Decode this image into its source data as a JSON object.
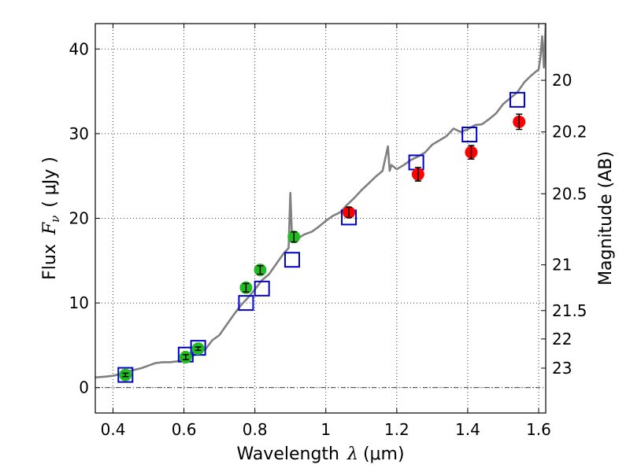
{
  "chart_data": {
    "type": "scatter",
    "xlabel_prefix": "Wavelength",
    "xlabel_symbol": "λ",
    "xlabel_unit": "(μm)",
    "ylabel_prefix": "Flux",
    "ylabel_symbol": "F",
    "ylabel_sub": "ν",
    "ylabel_unit": "( μJy )",
    "y2label": "Magnitude (AB)",
    "xlim": [
      0.35,
      1.62
    ],
    "ylim": [
      -3,
      43
    ],
    "grid": true,
    "x_ticks": [
      0.4,
      0.6,
      0.8,
      1.0,
      1.2,
      1.4,
      1.6
    ],
    "x_tick_labels": [
      "0.4",
      "0.6",
      "0.8",
      "1",
      "1.2",
      "1.4",
      "1.6"
    ],
    "y_ticks": [
      0,
      10,
      20,
      30,
      40
    ],
    "y_tick_labels": [
      "0",
      "10",
      "20",
      "30",
      "40"
    ],
    "mag_ticks": [
      {
        "flux": 36.3,
        "label": "20"
      },
      {
        "flux": 30.2,
        "label": "20.2"
      },
      {
        "flux": 22.9,
        "label": "20.5"
      },
      {
        "flux": 14.5,
        "label": "21"
      },
      {
        "flux": 9.1,
        "label": "21.5"
      },
      {
        "flux": 5.75,
        "label": "22"
      },
      {
        "flux": 2.3,
        "label": "23"
      }
    ],
    "zero_line": 0,
    "series": [
      {
        "kind": "model-spectrum",
        "color": "#808080",
        "x": [
          0.35,
          0.38,
          0.4,
          0.42,
          0.44,
          0.46,
          0.48,
          0.5,
          0.52,
          0.54,
          0.56,
          0.58,
          0.6,
          0.62,
          0.64,
          0.66,
          0.68,
          0.7,
          0.72,
          0.74,
          0.76,
          0.78,
          0.8,
          0.82,
          0.84,
          0.86,
          0.88,
          0.895,
          0.9,
          0.905,
          0.92,
          0.94,
          0.96,
          0.98,
          1.0,
          1.02,
          1.04,
          1.06,
          1.08,
          1.1,
          1.12,
          1.14,
          1.16,
          1.175,
          1.18,
          1.185,
          1.2,
          1.22,
          1.24,
          1.26,
          1.28,
          1.3,
          1.32,
          1.34,
          1.36,
          1.38,
          1.4,
          1.42,
          1.44,
          1.46,
          1.48,
          1.5,
          1.52,
          1.54,
          1.56,
          1.58,
          1.6,
          1.605,
          1.61,
          1.615,
          1.62
        ],
        "y": [
          1.2,
          1.3,
          1.4,
          1.6,
          1.9,
          2.1,
          2.3,
          2.6,
          2.9,
          3.0,
          3.0,
          3.1,
          3.3,
          3.6,
          4.2,
          4.5,
          5.6,
          6.2,
          7.4,
          8.6,
          9.7,
          10.6,
          11.6,
          12.7,
          13.4,
          14.6,
          15.8,
          16.5,
          23.0,
          17.2,
          17.6,
          18.1,
          18.4,
          19.0,
          19.7,
          20.3,
          20.7,
          21.6,
          22.4,
          23.3,
          24.1,
          24.9,
          25.6,
          28.5,
          25.6,
          26.3,
          25.8,
          26.3,
          26.9,
          27.3,
          27.8,
          28.7,
          29.2,
          29.7,
          30.6,
          30.2,
          30.5,
          31.0,
          31.1,
          31.7,
          32.4,
          33.5,
          34.2,
          34.9,
          36.1,
          36.9,
          37.6,
          39.0,
          41.5,
          37.8,
          43.0
        ]
      },
      {
        "kind": "model-bandpass",
        "marker": "open-square",
        "color": "#0000cc",
        "x": [
          0.435,
          0.605,
          0.64,
          0.775,
          0.82,
          0.905,
          1.065,
          1.255,
          1.405,
          1.54
        ],
        "y": [
          1.5,
          3.9,
          4.7,
          10.0,
          11.7,
          15.1,
          20.1,
          26.6,
          29.9,
          34.0
        ]
      },
      {
        "kind": "observed-optical",
        "marker": "filled-circle",
        "color": "#22bb22",
        "x": [
          0.435,
          0.605,
          0.64,
          0.775,
          0.815,
          0.91
        ],
        "y": [
          1.5,
          3.6,
          4.6,
          11.8,
          13.9,
          17.8
        ],
        "yerr": [
          0.2,
          0.3,
          0.2,
          0.5,
          0.5,
          0.6
        ]
      },
      {
        "kind": "observed-nir",
        "marker": "filled-circle",
        "color": "#ff0000",
        "x": [
          1.065,
          1.26,
          1.41,
          1.545
        ],
        "y": [
          20.7,
          25.2,
          27.8,
          31.4
        ],
        "yerr": [
          0.6,
          0.8,
          0.8,
          0.9
        ]
      }
    ]
  }
}
